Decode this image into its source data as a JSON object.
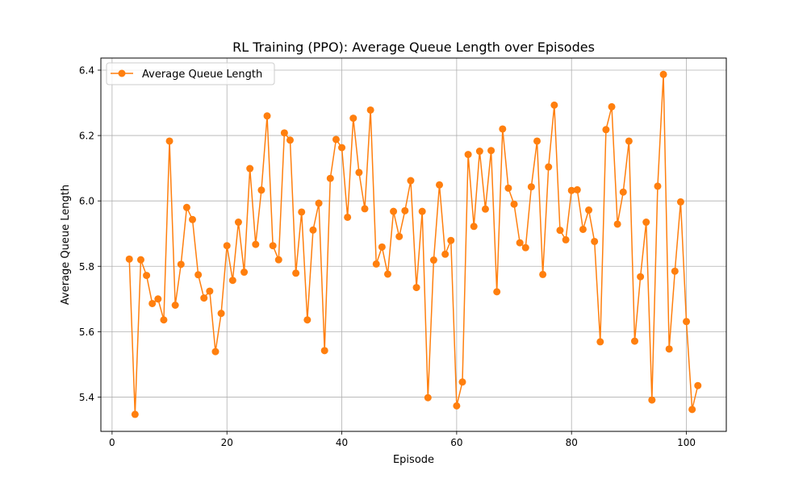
{
  "chart_data": {
    "type": "line",
    "title": "RL Training (PPO): Average Queue Length over Episodes",
    "xlabel": "Episode",
    "ylabel": "Average Queue Length",
    "xlim": [
      -1.95,
      106.95
    ],
    "ylim": [
      5.295,
      6.437
    ],
    "xticks": [
      0,
      20,
      40,
      60,
      80,
      100
    ],
    "yticks": [
      5.4,
      5.6,
      5.8,
      6.0,
      6.2,
      6.4
    ],
    "xtick_labels": [
      "0",
      "20",
      "40",
      "60",
      "80",
      "100"
    ],
    "ytick_labels": [
      "5.4",
      "5.6",
      "5.8",
      "6.0",
      "6.2",
      "6.4"
    ],
    "grid": true,
    "legend_position": "upper left",
    "series": [
      {
        "name": "Average Queue Length",
        "color": "#ff7f0e",
        "marker": "circle",
        "x": [
          3,
          4,
          5,
          6,
          7,
          8,
          9,
          10,
          11,
          12,
          13,
          14,
          15,
          16,
          17,
          18,
          19,
          20,
          21,
          22,
          23,
          24,
          25,
          26,
          27,
          28,
          29,
          30,
          31,
          32,
          33,
          34,
          35,
          36,
          37,
          38,
          39,
          40,
          41,
          42,
          43,
          44,
          45,
          46,
          47,
          48,
          49,
          50,
          51,
          52,
          53,
          54,
          55,
          56,
          57,
          58,
          59,
          60,
          61,
          62,
          63,
          64,
          65,
          66,
          67,
          68,
          69,
          70,
          71,
          72,
          73,
          74,
          75,
          76,
          77,
          78,
          79,
          80,
          81,
          82,
          83,
          84,
          85,
          86,
          87,
          88,
          89,
          90,
          91,
          92,
          93,
          94,
          95,
          96,
          97,
          98,
          99,
          100,
          101,
          102
        ],
        "y": [
          5.822,
          5.347,
          5.82,
          5.772,
          5.686,
          5.7,
          5.636,
          6.183,
          5.681,
          5.806,
          5.98,
          5.943,
          5.774,
          5.703,
          5.724,
          5.539,
          5.656,
          5.863,
          5.757,
          5.935,
          5.782,
          6.099,
          5.867,
          6.033,
          6.26,
          5.863,
          5.82,
          6.208,
          6.186,
          5.779,
          5.966,
          5.636,
          5.911,
          5.993,
          5.542,
          6.069,
          6.188,
          6.163,
          5.95,
          6.253,
          6.087,
          5.976,
          6.278,
          5.807,
          5.859,
          5.776,
          5.968,
          5.891,
          5.97,
          6.062,
          5.735,
          5.968,
          5.398,
          5.819,
          6.049,
          5.837,
          5.879,
          5.373,
          5.446,
          6.142,
          5.922,
          6.152,
          5.975,
          6.154,
          5.722,
          6.22,
          6.039,
          5.99,
          5.872,
          5.857,
          6.043,
          6.183,
          5.775,
          6.104,
          6.293,
          5.91,
          5.881,
          6.032,
          6.034,
          5.913,
          5.972,
          5.876,
          5.569,
          6.218,
          6.288,
          5.929,
          6.027,
          6.183,
          5.571,
          5.768,
          5.935,
          5.391,
          6.045,
          6.387,
          5.547,
          5.785,
          5.997,
          5.631,
          5.362,
          5.435
        ]
      }
    ]
  }
}
